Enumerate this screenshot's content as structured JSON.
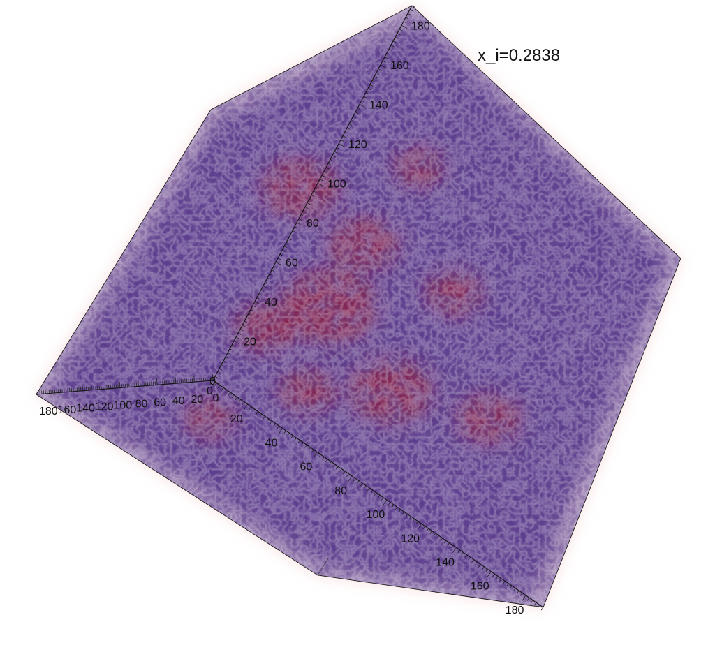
{
  "annotation": {
    "text": "x_i=0.2838"
  },
  "colors": {
    "background": "#ffffff",
    "volume_main": "#5a3a8c",
    "volume_dark": "#3a2468",
    "hot_region": "#a11a2a",
    "edge_haze": "#f2c4c4",
    "axis": "#111111"
  },
  "axes": {
    "vertical": {
      "ticks": [
        20,
        40,
        60,
        80,
        100,
        120,
        140,
        160,
        180
      ]
    },
    "diagonal": {
      "ticks": [
        20,
        40,
        60,
        80,
        100,
        120,
        140,
        160,
        180
      ]
    },
    "left": {
      "ticks": [
        0,
        20,
        40,
        60,
        80,
        100,
        120,
        140,
        160,
        180
      ]
    },
    "origin_labels": [
      "0",
      "0"
    ]
  }
}
